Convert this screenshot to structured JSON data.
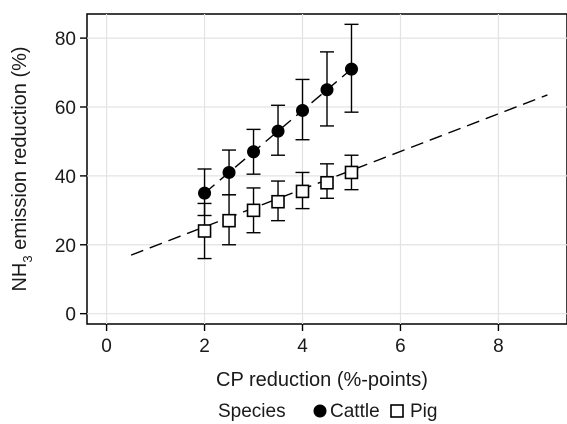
{
  "chart_data": {
    "type": "scatter",
    "xlabel": "CP reduction (%-points)",
    "ylabel_main": "NH",
    "ylabel_sub": "3",
    "ylabel_rest": " emission reduction (%)",
    "xlim": [
      -0.4,
      9.4
    ],
    "ylim": [
      -3,
      87
    ],
    "xticks": [
      0,
      2,
      4,
      6,
      8
    ],
    "yticks": [
      0,
      20,
      40,
      60,
      80
    ],
    "xtick_labels": [
      "0",
      "2",
      "4",
      "6",
      "8"
    ],
    "ytick_labels": [
      "0",
      "20",
      "40",
      "60",
      "80"
    ],
    "grid": true,
    "legend": {
      "position": "bottom",
      "title": "Species",
      "entries": [
        "Cattle",
        "Pig"
      ]
    },
    "series": [
      {
        "name": "Cattle",
        "marker": "filled-circle",
        "color": "#000000",
        "x": [
          2.0,
          2.5,
          3.0,
          3.5,
          4.0,
          4.5,
          5.0
        ],
        "y": [
          35,
          41,
          47,
          53,
          59,
          65,
          71
        ],
        "err_low": [
          28.5,
          34.5,
          40.5,
          46,
          50.5,
          54.5,
          58.5
        ],
        "err_high": [
          42,
          47.5,
          53.5,
          60.5,
          68,
          76,
          84
        ],
        "fit_line": {
          "x": [
            2.0,
            5.0
          ],
          "y": [
            35,
            71
          ]
        }
      },
      {
        "name": "Pig",
        "marker": "open-square",
        "color": "#000000",
        "x": [
          2.0,
          2.5,
          3.0,
          3.5,
          4.0,
          4.5,
          5.0
        ],
        "y": [
          24,
          27,
          30,
          32.5,
          35.5,
          38,
          41
        ],
        "err_low": [
          16,
          20,
          23.5,
          27,
          30.5,
          33.5,
          36
        ],
        "err_high": [
          32,
          34.5,
          36.5,
          38.5,
          41,
          43.5,
          46
        ],
        "fit_line": {
          "x": [
            0.5,
            9.0
          ],
          "y": [
            17,
            63.5
          ]
        }
      }
    ],
    "extra_lines": [
      {
        "style": "dashed",
        "x": [
          0.5,
          9.0
        ],
        "y": [
          17,
          63.5
        ]
      },
      {
        "style": "dashed",
        "x": [
          2.0,
          5.0
        ],
        "y": [
          35,
          71
        ]
      }
    ]
  }
}
